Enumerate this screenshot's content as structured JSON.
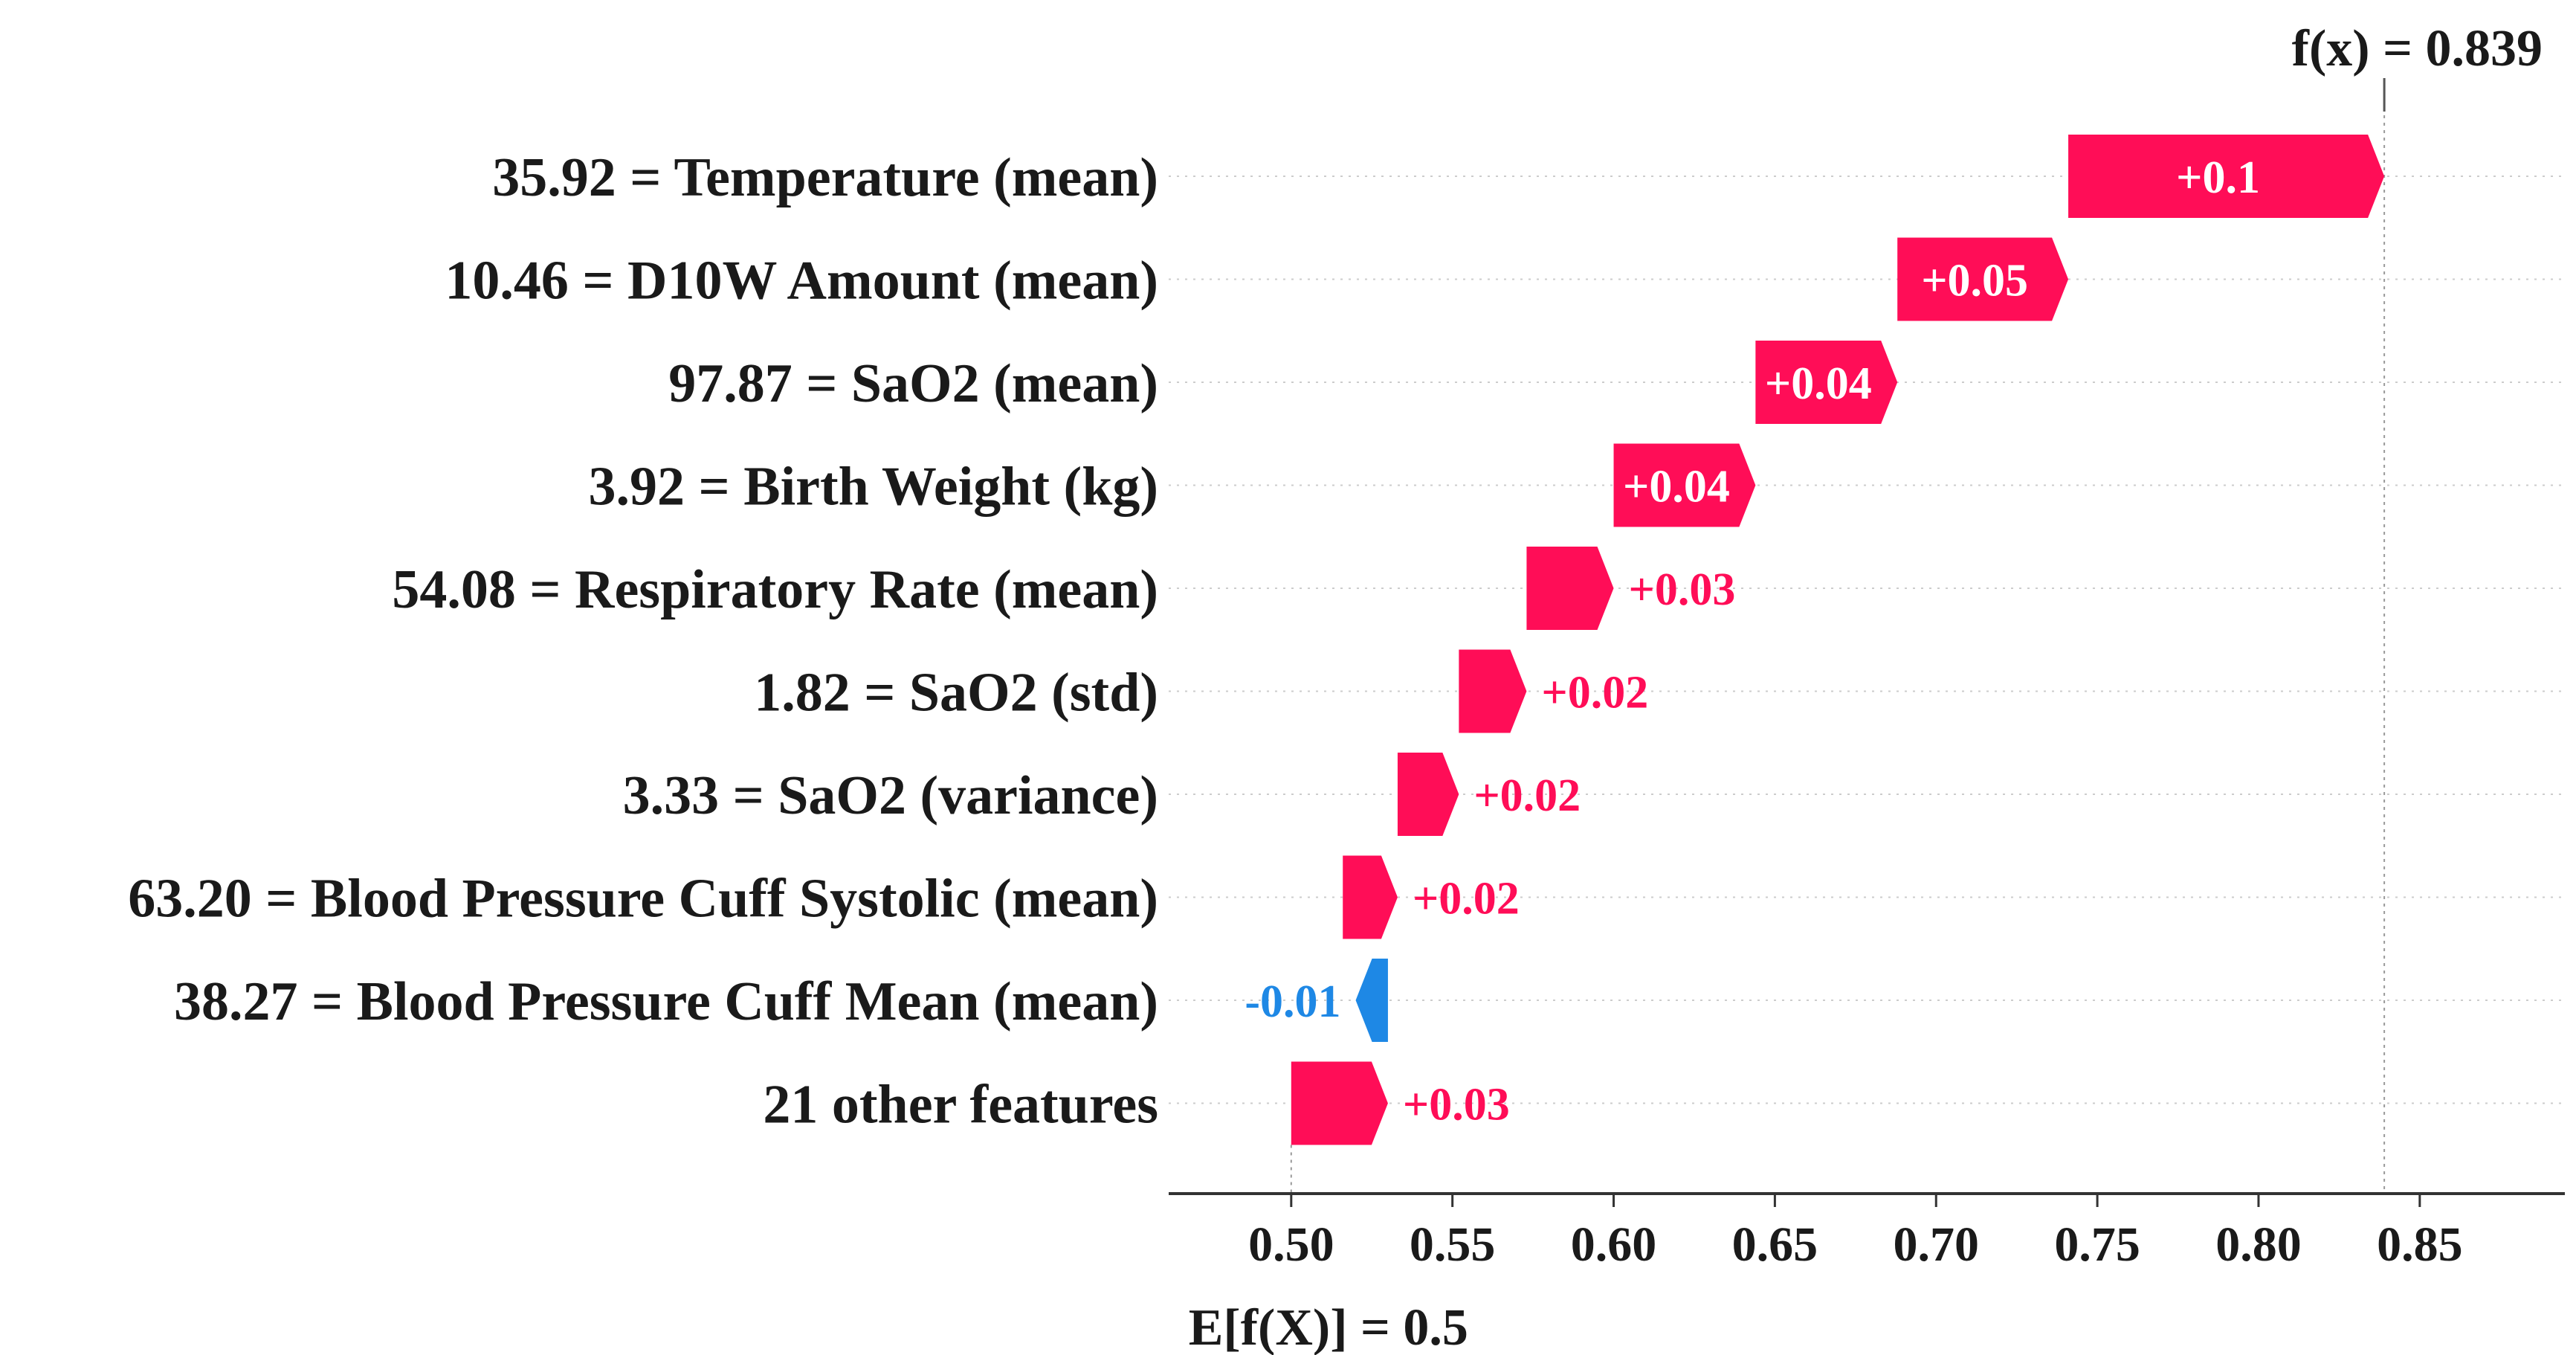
{
  "chart_data": {
    "type": "waterfall",
    "base_value": 0.5,
    "final_value": 0.839,
    "fx_label": "f(x) = 0.839",
    "base_label": "E[f(X)] = 0.5",
    "features": [
      {
        "label": "35.92 = Temperature (mean)",
        "contribution": 0.1,
        "display": "+0.1"
      },
      {
        "label": "10.46 = D10W Amount (mean)",
        "contribution": 0.05,
        "display": "+0.05"
      },
      {
        "label": "97.87 = SaO2 (mean)",
        "contribution": 0.04,
        "display": "+0.04"
      },
      {
        "label": "3.92 = Birth Weight (kg)",
        "contribution": 0.04,
        "display": "+0.04"
      },
      {
        "label": "54.08 = Respiratory Rate (mean)",
        "contribution": 0.03,
        "display": "+0.03"
      },
      {
        "label": "1.82 = SaO2 (std)",
        "contribution": 0.02,
        "display": "+0.02"
      },
      {
        "label": "3.33 = SaO2 (variance)",
        "contribution": 0.02,
        "display": "+0.02"
      },
      {
        "label": "63.20 = Blood Pressure Cuff Systolic (mean)",
        "contribution": 0.02,
        "display": "+0.02"
      },
      {
        "label": "38.27 = Blood Pressure Cuff Mean (mean)",
        "contribution": -0.01,
        "display": "-0.01"
      },
      {
        "label": "21 other features",
        "contribution": 0.03,
        "display": "+0.03"
      }
    ],
    "bar_ranges": [
      [
        0.741,
        0.839
      ],
      [
        0.688,
        0.741
      ],
      [
        0.644,
        0.688
      ],
      [
        0.6,
        0.644
      ],
      [
        0.573,
        0.6
      ],
      [
        0.552,
        0.573
      ],
      [
        0.533,
        0.552
      ],
      [
        0.516,
        0.533
      ],
      [
        0.52,
        0.53
      ],
      [
        0.5,
        0.53
      ]
    ],
    "xticks": [
      0.5,
      0.55,
      0.6,
      0.65,
      0.7,
      0.75,
      0.8,
      0.85
    ],
    "xtick_labels": [
      "0.50",
      "0.55",
      "0.60",
      "0.65",
      "0.70",
      "0.75",
      "0.80",
      "0.85"
    ],
    "xlim": [
      0.462,
      0.895
    ],
    "colors": {
      "positive": "#ff0d57",
      "negative": "#1e88e5",
      "text": "#1a1a1a",
      "gridline": "#cccccc"
    }
  }
}
